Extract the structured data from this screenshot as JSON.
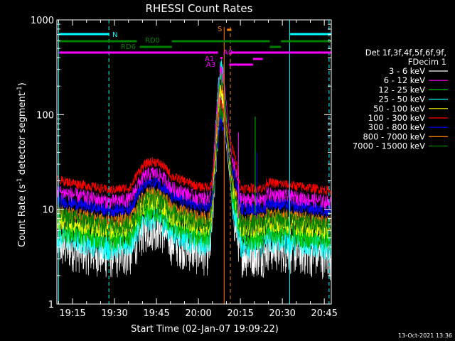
{
  "chart_data": {
    "type": "line",
    "title": "RHESSI Count Rates",
    "xlabel": "Start Time (02-Jan-07 19:09:22)",
    "ylabel_main": "Count Rate (s",
    "ylabel_exp1": "-1",
    "ylabel_mid": " detector segment",
    "ylabel_exp2": "-1",
    "ylabel_end": ")",
    "x_ticks": [
      "19:15",
      "19:30",
      "19:45",
      "20:00",
      "20:15",
      "20:30",
      "20:45"
    ],
    "x_tick_minutes": [
      15,
      30,
      45,
      60,
      75,
      90,
      105
    ],
    "xlim_minutes": [
      9.4,
      107.5
    ],
    "y_ticks": [
      "1",
      "10",
      "100",
      "1000"
    ],
    "y_tick_values": [
      1,
      10,
      100,
      1000
    ],
    "ylim": [
      1,
      1000
    ],
    "yscale": "log",
    "grid": false,
    "legend_placement": "right",
    "legend_header": [
      "Det 1f,3f,4f,5f,6f,9f,",
      "FDecim 1"
    ],
    "series": [
      {
        "name": "3 - 6 keV",
        "color": "#ffffff",
        "base": 4.2
      },
      {
        "name": "6 - 12 keV",
        "color": "#ff00ff",
        "base": 15.5
      },
      {
        "name": "12 - 25 keV",
        "color": "#00c000",
        "base": 6.3
      },
      {
        "name": "25 - 50 keV",
        "color": "#00ffff",
        "base": 5.4
      },
      {
        "name": "50 - 100 keV",
        "color": "#ffff00",
        "base": 7.8
      },
      {
        "name": "100 - 300 keV",
        "color": "#ff0000",
        "base": 20.5
      },
      {
        "name": "300 - 800 keV",
        "color": "#0000ff",
        "base": 12.5
      },
      {
        "name": "800 - 7000 keV",
        "color": "#ff8000",
        "base": 9.5
      },
      {
        "name": "7000 - 15000 keV",
        "color": "#008000",
        "base": 8.7
      }
    ],
    "flag_labels": {
      "N": "N",
      "RD0": "RD0",
      "RD6": "RD6",
      "S": "S",
      "A0": "A0",
      "A1": "A1",
      "A3": "A3"
    },
    "flag_colors": {
      "N": "#00ffff",
      "RD": "#008000",
      "S": "#ff8000",
      "A": "#ff00ff"
    }
  },
  "footer_date": "13-Oct-2021 13:36"
}
